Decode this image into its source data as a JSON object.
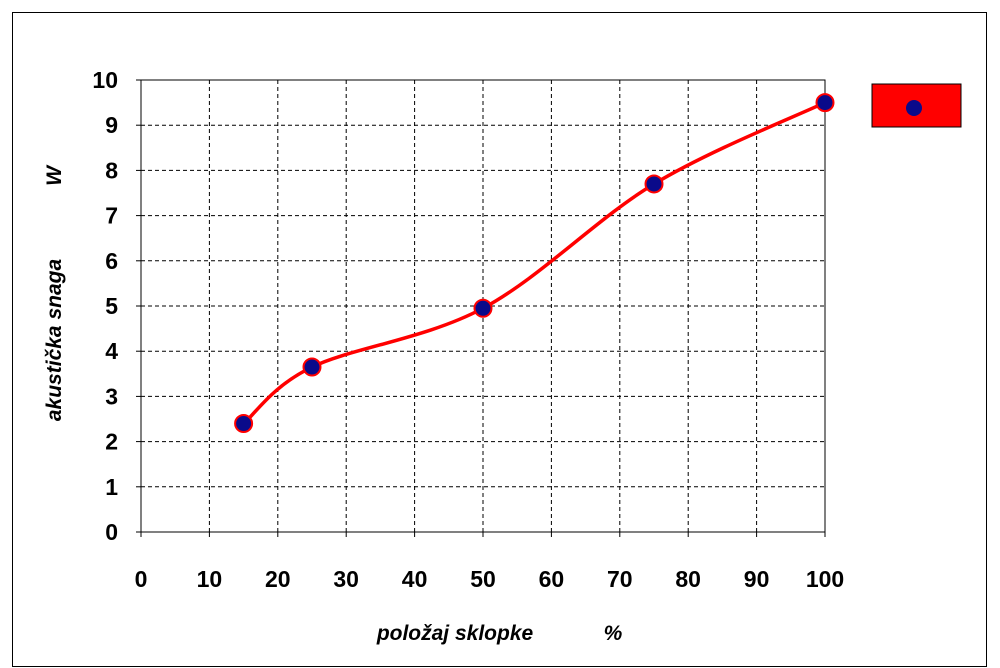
{
  "chart_data": {
    "type": "line",
    "title": "",
    "xlabel": "položaj  sklopke",
    "xunit": "%",
    "ylabel": "akustička snaga",
    "yunit": "W",
    "xlim": [
      0,
      100
    ],
    "ylim": [
      0,
      10
    ],
    "xticks": [
      0,
      10,
      20,
      30,
      40,
      50,
      60,
      70,
      80,
      90,
      100
    ],
    "yticks": [
      0,
      1,
      2,
      3,
      4,
      5,
      6,
      7,
      8,
      9,
      10
    ],
    "grid": true,
    "legend": "right",
    "series": [
      {
        "points": [
          {
            "x": 15,
            "y": 2.4
          },
          {
            "x": 25,
            "y": 3.65
          },
          {
            "x": 50,
            "y": 4.95
          },
          {
            "x": 75,
            "y": 7.7
          },
          {
            "x": 100,
            "y": 9.5
          }
        ],
        "line_color": "#ff0000",
        "marker_fill": "#0a0a8a",
        "marker_edge": "#ff0000"
      }
    ]
  }
}
